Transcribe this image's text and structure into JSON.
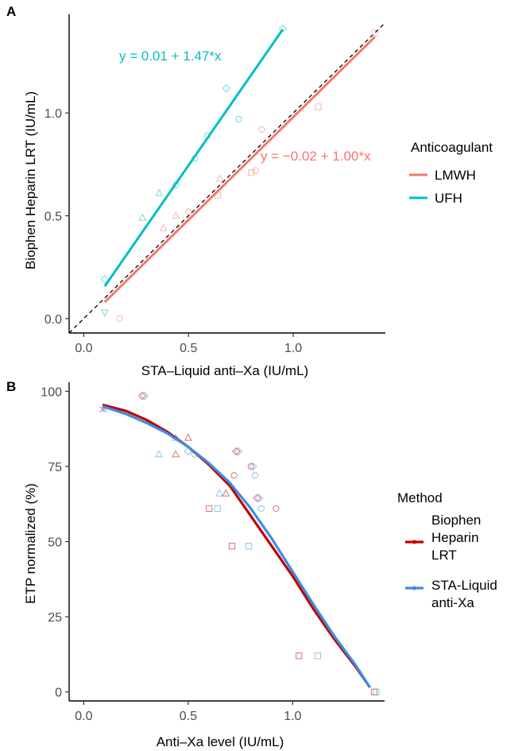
{
  "colors": {
    "lmwh": "#f8766d",
    "ufh": "#00bfc4",
    "biophen": "#c00000",
    "sta": "#3a8ee6",
    "axis": "#000000",
    "tick": "#4d4d4d"
  },
  "chart_data": [
    {
      "panel": "A",
      "type": "scatter",
      "xlabel": "STA–Liquid anti–Xa (IU/mL)",
      "ylabel": "Biophen Heparin LRT (IU/mL)",
      "xlim": [
        -0.07,
        1.44
      ],
      "ylim": [
        -0.07,
        1.48
      ],
      "xticks": [
        {
          "value": 0.0,
          "label": "0.0"
        },
        {
          "value": 0.5,
          "label": "0.5"
        },
        {
          "value": 1.0,
          "label": "1.0"
        }
      ],
      "yticks": [
        {
          "value": 0.0,
          "label": "0.0"
        },
        {
          "value": 0.5,
          "label": "0.5"
        },
        {
          "value": 1.0,
          "label": "1.0"
        }
      ],
      "grid": false,
      "legend": {
        "title": "Anticoagulant",
        "placement": "right"
      },
      "identity_line": true,
      "series": [
        {
          "name": "LMWH",
          "color_key": "lmwh",
          "equation": "y = −0.02 + 1.00*x",
          "fit": {
            "intercept": -0.02,
            "slope": 1.0,
            "x_range": [
              0.1,
              1.39
            ]
          },
          "points": [
            {
              "x": 0.17,
              "y": 0.0,
              "shape": "circle"
            },
            {
              "x": 0.38,
              "y": 0.44,
              "shape": "triangle-up"
            },
            {
              "x": 0.44,
              "y": 0.5,
              "shape": "triangle-up"
            },
            {
              "x": 0.5,
              "y": 0.52,
              "shape": "circle"
            },
            {
              "x": 0.64,
              "y": 0.6,
              "shape": "square"
            },
            {
              "x": 0.65,
              "y": 0.68,
              "shape": "triangle-up"
            },
            {
              "x": 0.8,
              "y": 0.71,
              "shape": "square"
            },
            {
              "x": 0.82,
              "y": 0.72,
              "shape": "circle"
            },
            {
              "x": 0.85,
              "y": 0.92,
              "shape": "circle"
            },
            {
              "x": 1.12,
              "y": 1.03,
              "shape": "square"
            },
            {
              "x": 1.39,
              "y": 1.39,
              "shape": "square"
            }
          ]
        },
        {
          "name": "UFH",
          "color_key": "ufh",
          "equation": "y = 0.01 + 1.47*x",
          "fit": {
            "intercept": 0.01,
            "slope": 1.47,
            "x_range": [
              0.1,
              0.95
            ]
          },
          "points": [
            {
              "x": 0.1,
              "y": 0.03,
              "shape": "triangle-down"
            },
            {
              "x": 0.1,
              "y": 0.19,
              "shape": "diamond"
            },
            {
              "x": 0.28,
              "y": 0.49,
              "shape": "triangle-up"
            },
            {
              "x": 0.36,
              "y": 0.61,
              "shape": "triangle-up"
            },
            {
              "x": 0.44,
              "y": 0.65,
              "shape": "diamond"
            },
            {
              "x": 0.53,
              "y": 0.78,
              "shape": "circle"
            },
            {
              "x": 0.59,
              "y": 0.89,
              "shape": "circle"
            },
            {
              "x": 0.68,
              "y": 1.12,
              "shape": "diamond"
            },
            {
              "x": 0.74,
              "y": 0.97,
              "shape": "circle"
            },
            {
              "x": 0.95,
              "y": 1.41,
              "shape": "diamond"
            }
          ]
        }
      ]
    },
    {
      "panel": "B",
      "type": "scatter",
      "xlabel": "Anti–Xa level (IU/mL)",
      "ylabel": "ETP normalized (%)",
      "xlim": [
        -0.07,
        1.44
      ],
      "ylim": [
        -3,
        103
      ],
      "xticks": [
        {
          "value": 0.0,
          "label": "0.0"
        },
        {
          "value": 0.5,
          "label": "0.5"
        },
        {
          "value": 1.0,
          "label": "1.0"
        }
      ],
      "yticks": [
        {
          "value": 0,
          "label": "0"
        },
        {
          "value": 25,
          "label": "25"
        },
        {
          "value": 50,
          "label": "50"
        },
        {
          "value": 75,
          "label": "75"
        },
        {
          "value": 100,
          "label": "100"
        }
      ],
      "grid": false,
      "legend": {
        "title": "Method",
        "placement": "right"
      },
      "series": [
        {
          "name": "Biophen Heparin LRT",
          "legend_lines": [
            "Biophen",
            "Heparin",
            "LRT"
          ],
          "color_key": "biophen",
          "smooth": [
            {
              "x": 0.09,
              "y": 95.5
            },
            {
              "x": 0.2,
              "y": 93.5
            },
            {
              "x": 0.3,
              "y": 90.5
            },
            {
              "x": 0.4,
              "y": 86.5
            },
            {
              "x": 0.5,
              "y": 81.5
            },
            {
              "x": 0.6,
              "y": 75.5
            },
            {
              "x": 0.7,
              "y": 68.5
            },
            {
              "x": 0.8,
              "y": 58.5
            },
            {
              "x": 0.9,
              "y": 48.5
            },
            {
              "x": 1.0,
              "y": 38.5
            },
            {
              "x": 1.1,
              "y": 27.5
            },
            {
              "x": 1.2,
              "y": 17.5
            },
            {
              "x": 1.3,
              "y": 8.5
            },
            {
              "x": 1.37,
              "y": 1.5
            }
          ],
          "points": [
            {
              "x": 0.09,
              "y": 94.0,
              "shape": "x"
            },
            {
              "x": 0.28,
              "y": 98.5,
              "shape": "diamond"
            },
            {
              "x": 0.44,
              "y": 79.0,
              "shape": "triangle-up"
            },
            {
              "x": 0.5,
              "y": 84.5,
              "shape": "triangle-up"
            },
            {
              "x": 0.6,
              "y": 61.0,
              "shape": "square"
            },
            {
              "x": 0.68,
              "y": 66.0,
              "shape": "triangle-up"
            },
            {
              "x": 0.71,
              "y": 48.5,
              "shape": "square"
            },
            {
              "x": 0.72,
              "y": 72.0,
              "shape": "circle"
            },
            {
              "x": 0.73,
              "y": 80.0,
              "shape": "diamond"
            },
            {
              "x": 0.8,
              "y": 75.0,
              "shape": "circle"
            },
            {
              "x": 0.83,
              "y": 64.5,
              "shape": "diamond"
            },
            {
              "x": 0.92,
              "y": 61.0,
              "shape": "circle"
            },
            {
              "x": 1.03,
              "y": 12.0,
              "shape": "square"
            },
            {
              "x": 1.39,
              "y": 0.0,
              "shape": "square"
            }
          ]
        },
        {
          "name": "STA-Liquid anti-Xa",
          "legend_lines": [
            "STA-Liquid",
            "anti-Xa"
          ],
          "color_key": "sta",
          "smooth": [
            {
              "x": 0.09,
              "y": 95.0
            },
            {
              "x": 0.2,
              "y": 92.5
            },
            {
              "x": 0.3,
              "y": 89.5
            },
            {
              "x": 0.4,
              "y": 86.0
            },
            {
              "x": 0.5,
              "y": 81.5
            },
            {
              "x": 0.6,
              "y": 76.0
            },
            {
              "x": 0.7,
              "y": 69.5
            },
            {
              "x": 0.8,
              "y": 61.0
            },
            {
              "x": 0.9,
              "y": 51.0
            },
            {
              "x": 1.0,
              "y": 40.0
            },
            {
              "x": 1.1,
              "y": 29.0
            },
            {
              "x": 1.2,
              "y": 18.5
            },
            {
              "x": 1.3,
              "y": 9.0
            },
            {
              "x": 1.37,
              "y": 1.5
            }
          ],
          "points": [
            {
              "x": 0.1,
              "y": 94.0,
              "shape": "x"
            },
            {
              "x": 0.29,
              "y": 98.5,
              "shape": "diamond"
            },
            {
              "x": 0.36,
              "y": 79.0,
              "shape": "triangle-up"
            },
            {
              "x": 0.44,
              "y": 84.5,
              "shape": "triangle-up"
            },
            {
              "x": 0.5,
              "y": 80.0,
              "shape": "diamond"
            },
            {
              "x": 0.53,
              "y": 79.0,
              "shape": "circle"
            },
            {
              "x": 0.64,
              "y": 61.0,
              "shape": "square"
            },
            {
              "x": 0.65,
              "y": 66.0,
              "shape": "triangle-up"
            },
            {
              "x": 0.74,
              "y": 80.0,
              "shape": "diamond"
            },
            {
              "x": 0.79,
              "y": 48.5,
              "shape": "square"
            },
            {
              "x": 0.81,
              "y": 75.0,
              "shape": "diamond"
            },
            {
              "x": 0.82,
              "y": 72.0,
              "shape": "circle"
            },
            {
              "x": 0.84,
              "y": 64.5,
              "shape": "diamond"
            },
            {
              "x": 0.85,
              "y": 61.0,
              "shape": "circle"
            },
            {
              "x": 1.12,
              "y": 12.0,
              "shape": "square"
            },
            {
              "x": 1.4,
              "y": 0.0,
              "shape": "square"
            }
          ]
        }
      ]
    }
  ]
}
